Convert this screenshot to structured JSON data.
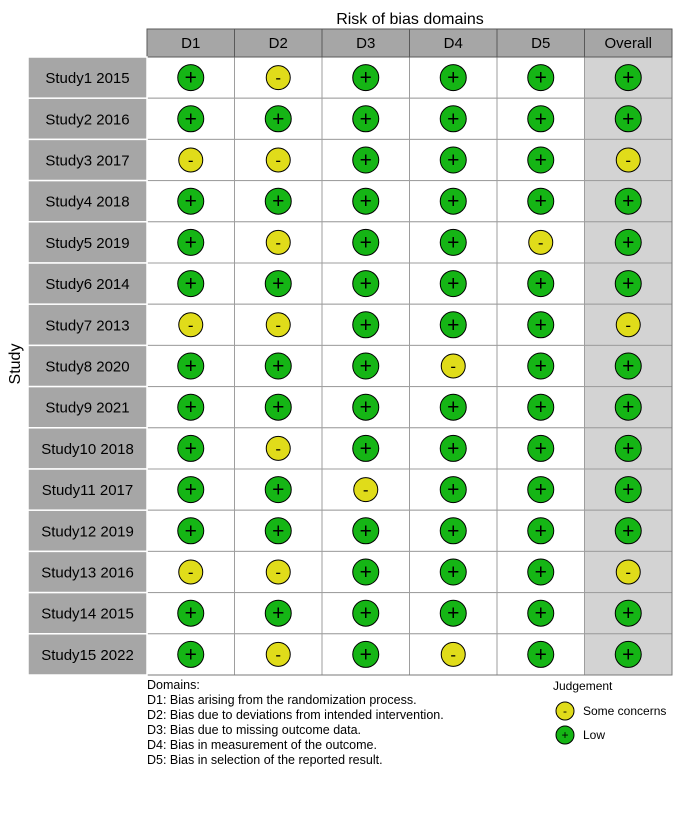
{
  "chart_data": {
    "type": "table",
    "title": "Risk of bias domains",
    "ylabel": "Study",
    "columns": [
      "D1",
      "D2",
      "D3",
      "D4",
      "D5",
      "Overall"
    ],
    "studies": [
      "Study1 2015",
      "Study2 2016",
      "Study3 2017",
      "Study4 2018",
      "Study5 2019",
      "Study6 2014",
      "Study7 2013",
      "Study8 2020",
      "Study9 2021",
      "Study10 2018",
      "Study11 2017",
      "Study12 2019",
      "Study13 2016",
      "Study14 2015",
      "Study15 2022"
    ],
    "judgements": [
      [
        "+",
        "-",
        "+",
        "+",
        "+",
        "+"
      ],
      [
        "+",
        "+",
        "+",
        "+",
        "+",
        "+"
      ],
      [
        "-",
        "-",
        "+",
        "+",
        "+",
        "-"
      ],
      [
        "+",
        "+",
        "+",
        "+",
        "+",
        "+"
      ],
      [
        "+",
        "-",
        "+",
        "+",
        "-",
        "+"
      ],
      [
        "+",
        "+",
        "+",
        "+",
        "+",
        "+"
      ],
      [
        "-",
        "-",
        "+",
        "+",
        "+",
        "-"
      ],
      [
        "+",
        "+",
        "+",
        "-",
        "+",
        "+"
      ],
      [
        "+",
        "+",
        "+",
        "+",
        "+",
        "+"
      ],
      [
        "+",
        "-",
        "+",
        "+",
        "+",
        "+"
      ],
      [
        "+",
        "+",
        "-",
        "+",
        "+",
        "+"
      ],
      [
        "+",
        "+",
        "+",
        "+",
        "+",
        "+"
      ],
      [
        "-",
        "-",
        "+",
        "+",
        "+",
        "-"
      ],
      [
        "+",
        "+",
        "+",
        "+",
        "+",
        "+"
      ],
      [
        "+",
        "-",
        "+",
        "-",
        "+",
        "+"
      ]
    ],
    "domains_title": "Domains:",
    "domain_notes": [
      "D1: Bias arising from the randomization process.",
      "D2: Bias due to deviations from intended intervention.",
      "D3: Bias due to missing outcome data.",
      "D4: Bias in measurement of the outcome.",
      "D5: Bias in selection of the reported result."
    ],
    "legend_title": "Judgement",
    "legend": [
      {
        "symbol": "-",
        "label": "Some concerns",
        "color": "#e0dc1a"
      },
      {
        "symbol": "+",
        "label": "Low",
        "color": "#15b515"
      }
    ],
    "colors": {
      "low": "#15b515",
      "some_concerns": "#e0dc1a",
      "header_fill": "#a6a6a6",
      "study_fill": "#a6a6a6",
      "overall_fill": "#d3d3d3",
      "cell_fill": "#ffffff"
    }
  }
}
